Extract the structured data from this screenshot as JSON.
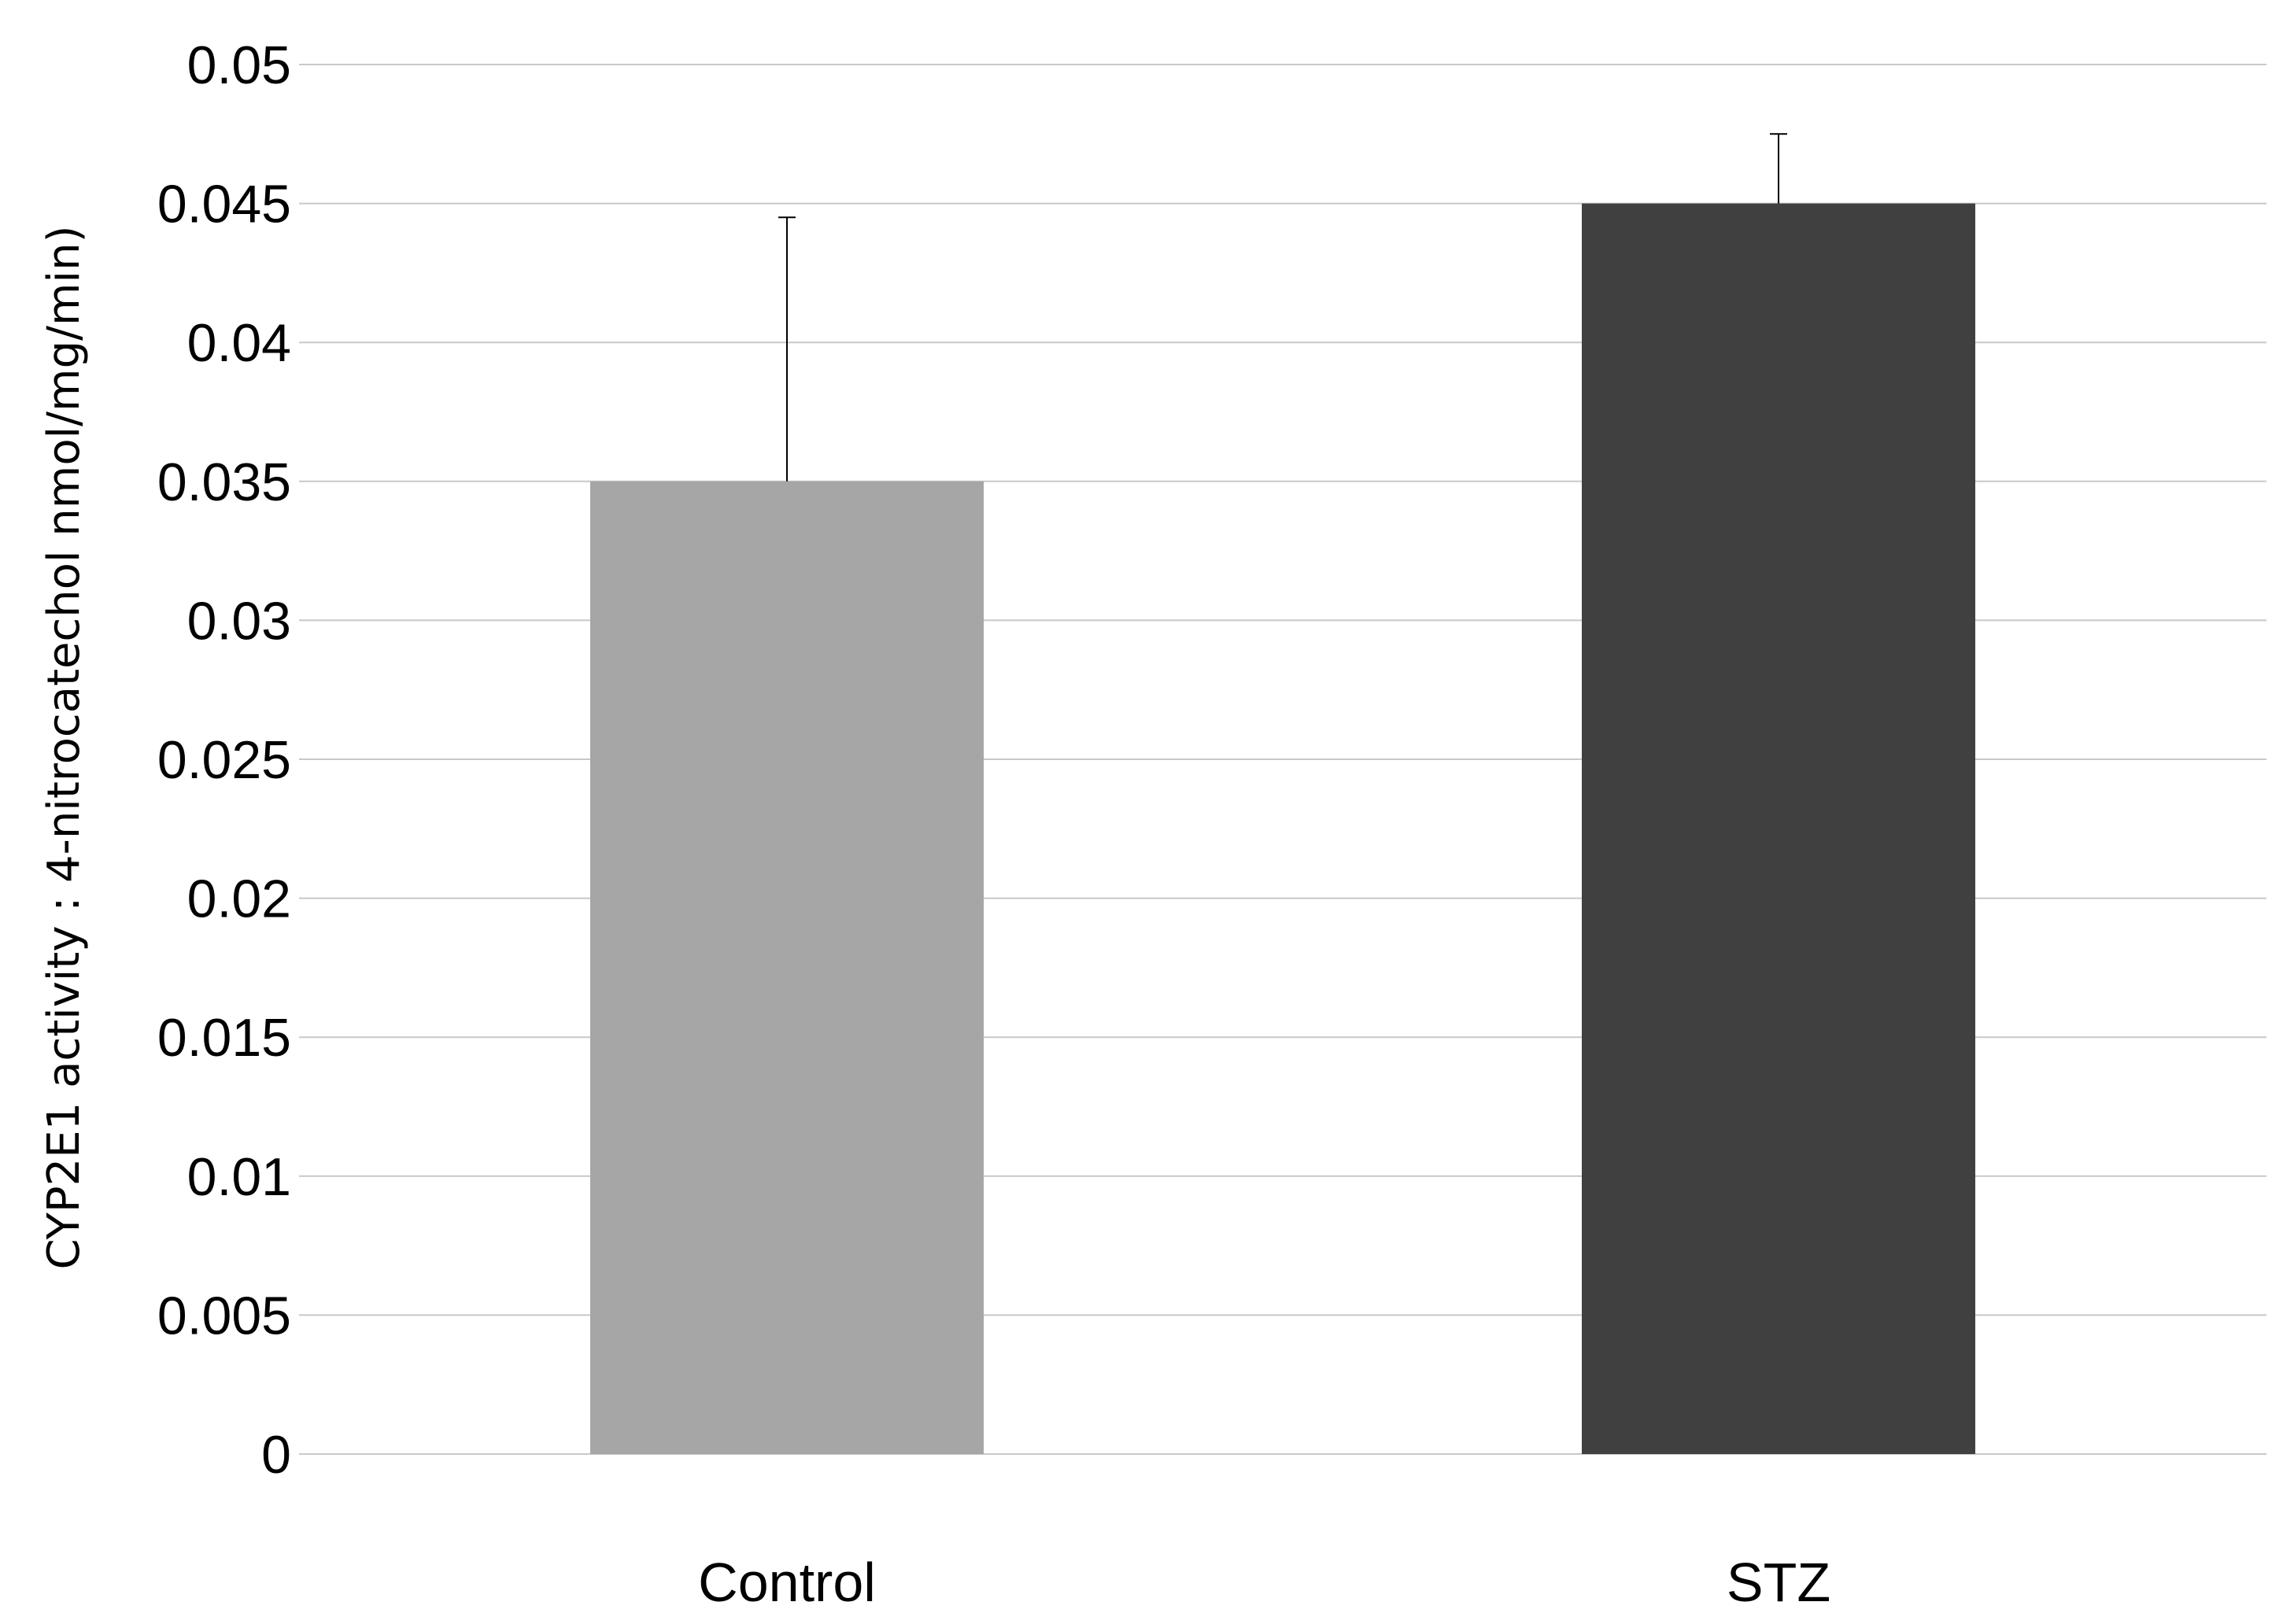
{
  "chart_data": {
    "type": "bar",
    "categories": [
      "Control",
      "STZ"
    ],
    "values": [
      0.035,
      0.045
    ],
    "error_plus": [
      0.0095,
      0.0025
    ],
    "colors": [
      "#a6a6a6",
      "#404040"
    ],
    "title": "",
    "xlabel": "",
    "ylabel": "CYP2E1 activity : 4-nitrocatechol nmol/mg/min)",
    "ylim": [
      0,
      0.05
    ],
    "yticks": [
      "0",
      "0.005",
      "0.01",
      "0.015",
      "0.02",
      "0.025",
      "0.03",
      "0.035",
      "0.04",
      "0.045",
      "0.05"
    ],
    "grid": true,
    "legend": "none"
  }
}
